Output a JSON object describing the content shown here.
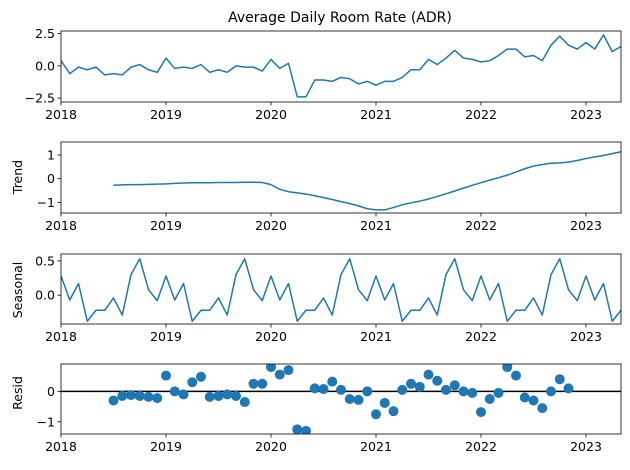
{
  "chart_data": [
    {
      "type": "line",
      "title": "Average Daily Room Rate (ADR)",
      "ylabel": "",
      "xlim": [
        "2018-01",
        "2023-05"
      ],
      "ylim": [
        -2.8,
        2.7
      ],
      "yticks": [
        2.5,
        0.0,
        -2.5
      ],
      "ytick_labels": [
        "2.5",
        "0.0",
        "−2.5"
      ],
      "xticks": [
        "2018-01",
        "2019-01",
        "2020-01",
        "2021-01",
        "2022-01",
        "2023-01"
      ],
      "xtick_labels": [
        "2018",
        "2019",
        "2020",
        "2021",
        "2022",
        "2023"
      ],
      "x_start": "2018-01",
      "color": "#1f77b4",
      "series": [
        {
          "values": [
            0.4,
            -0.6,
            -0.1,
            -0.3,
            -0.1,
            -0.7,
            -0.6,
            -0.7,
            -0.1,
            0.1,
            -0.3,
            -0.5,
            0.6,
            -0.2,
            -0.1,
            -0.2,
            0.1,
            -0.5,
            -0.3,
            -0.5,
            0.0,
            -0.1,
            -0.1,
            -0.4,
            0.5,
            -0.2,
            0.2,
            -2.4,
            -2.4,
            -1.1,
            -1.1,
            -1.2,
            -0.9,
            -1.0,
            -1.4,
            -1.2,
            -1.5,
            -1.2,
            -1.2,
            -0.9,
            -0.3,
            -0.3,
            0.5,
            0.1,
            0.6,
            1.2,
            0.6,
            0.5,
            0.3,
            0.4,
            0.8,
            1.3,
            1.3,
            0.7,
            0.8,
            0.4,
            1.6,
            2.3,
            1.6,
            1.3,
            1.8,
            1.3,
            2.4,
            1.1,
            1.5
          ]
        }
      ]
    },
    {
      "type": "line",
      "title": "",
      "ylabel": "Trend",
      "xlim": [
        "2018-01",
        "2023-05"
      ],
      "ylim": [
        -1.45,
        1.55
      ],
      "yticks": [
        1,
        0,
        -1
      ],
      "ytick_labels": [
        "1",
        "0",
        "−1"
      ],
      "xticks": [
        "2018-01",
        "2019-01",
        "2020-01",
        "2021-01",
        "2022-01",
        "2023-01"
      ],
      "xtick_labels": [
        "2018",
        "2019",
        "2020",
        "2021",
        "2022",
        "2023"
      ],
      "x_start": "2018-07",
      "color": "#1f77b4",
      "series": [
        {
          "values": [
            -0.28,
            -0.26,
            -0.25,
            -0.25,
            -0.24,
            -0.23,
            -0.22,
            -0.2,
            -0.18,
            -0.17,
            -0.17,
            -0.17,
            -0.16,
            -0.16,
            -0.16,
            -0.15,
            -0.15,
            -0.16,
            -0.25,
            -0.45,
            -0.55,
            -0.6,
            -0.65,
            -0.72,
            -0.8,
            -0.88,
            -0.97,
            -1.05,
            -1.15,
            -1.27,
            -1.32,
            -1.32,
            -1.22,
            -1.1,
            -1.02,
            -0.95,
            -0.86,
            -0.75,
            -0.64,
            -0.52,
            -0.4,
            -0.28,
            -0.17,
            -0.06,
            0.04,
            0.15,
            0.28,
            0.42,
            0.53,
            0.6,
            0.65,
            0.67,
            0.7,
            0.77,
            0.85,
            0.92,
            0.98,
            1.06,
            1.14,
            1.22,
            1.29,
            1.34,
            1.35,
            1.35
          ]
        }
      ]
    },
    {
      "type": "line",
      "title": "",
      "ylabel": "Seasonal",
      "xlim": [
        "2018-01",
        "2023-05"
      ],
      "ylim": [
        -0.42,
        0.6
      ],
      "yticks": [
        0.5,
        0.0
      ],
      "ytick_labels": [
        "0.5",
        "0.0"
      ],
      "xticks": [
        "2018-01",
        "2019-01",
        "2020-01",
        "2021-01",
        "2022-01",
        "2023-01"
      ],
      "xtick_labels": [
        "2018",
        "2019",
        "2020",
        "2021",
        "2022",
        "2023"
      ],
      "x_start": "2018-01",
      "color": "#1f77b4",
      "series": [
        {
          "values": [
            0.28,
            -0.07,
            0.17,
            -0.38,
            -0.22,
            -0.22,
            -0.04,
            -0.29,
            0.3,
            0.53,
            0.08,
            -0.08,
            0.28,
            -0.07,
            0.17,
            -0.38,
            -0.22,
            -0.22,
            -0.04,
            -0.29,
            0.3,
            0.53,
            0.08,
            -0.08,
            0.28,
            -0.07,
            0.17,
            -0.38,
            -0.22,
            -0.22,
            -0.04,
            -0.29,
            0.3,
            0.53,
            0.08,
            -0.08,
            0.28,
            -0.07,
            0.17,
            -0.38,
            -0.22,
            -0.22,
            -0.04,
            -0.29,
            0.3,
            0.53,
            0.08,
            -0.08,
            0.28,
            -0.07,
            0.17,
            -0.38,
            -0.22,
            -0.22,
            -0.04,
            -0.29,
            0.3,
            0.53,
            0.08,
            -0.08,
            0.28,
            -0.07,
            0.17,
            -0.38,
            -0.22
          ]
        }
      ]
    },
    {
      "type": "scatter",
      "title": "",
      "ylabel": "Resid",
      "xlim": [
        "2018-01",
        "2023-05"
      ],
      "ylim": [
        -1.4,
        0.9
      ],
      "yticks": [
        0,
        -1
      ],
      "ytick_labels": [
        "0",
        "−1"
      ],
      "xticks": [
        "2018-01",
        "2019-01",
        "2020-01",
        "2021-01",
        "2022-01",
        "2023-01"
      ],
      "xtick_labels": [
        "2018",
        "2019",
        "2020",
        "2021",
        "2022",
        "2023"
      ],
      "x_start": "2018-07",
      "baseline": 0,
      "color": "#1f77b4",
      "series": [
        {
          "values": [
            -0.3,
            -0.15,
            -0.12,
            -0.15,
            -0.18,
            -0.22,
            0.52,
            0.0,
            -0.1,
            0.3,
            0.48,
            -0.18,
            -0.15,
            -0.1,
            -0.15,
            -0.35,
            0.25,
            0.25,
            0.8,
            0.55,
            0.7,
            -1.25,
            -1.3,
            0.1,
            0.08,
            0.32,
            0.05,
            -0.25,
            -0.28,
            0.0,
            -0.75,
            -0.38,
            -0.65,
            0.05,
            0.25,
            0.15,
            0.55,
            0.35,
            0.05,
            0.2,
            0.0,
            -0.05,
            -0.68,
            -0.25,
            -0.05,
            0.8,
            0.52,
            -0.2,
            -0.3,
            -0.55,
            0.0,
            0.4,
            0.1
          ]
        }
      ]
    }
  ]
}
